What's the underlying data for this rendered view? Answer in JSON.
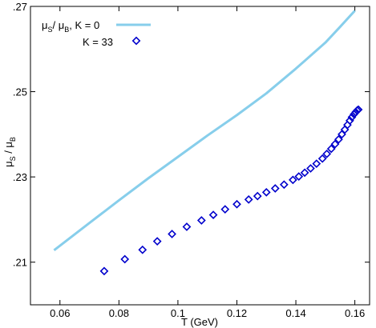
{
  "chart_data": {
    "type": "line",
    "title": "",
    "xlabel": "T (GeV)",
    "ylabel_parts": [
      "μ",
      "S",
      " / μ",
      "B"
    ],
    "xlim": [
      0.05,
      0.165
    ],
    "ylim": [
      0.2,
      0.27
    ],
    "xticks": [
      0.06,
      0.08,
      0.1,
      0.12,
      0.14,
      0.16
    ],
    "xtick_labels": [
      "0.06",
      "0.08",
      "0.1",
      "0.12",
      "0.14",
      "0.16"
    ],
    "yticks": [
      0.21,
      0.23,
      0.25,
      0.27
    ],
    "ytick_labels": [
      ".21",
      ".23",
      ".25",
      ".27"
    ],
    "grid": false,
    "legend_position": "top-left",
    "series": [
      {
        "legend_parts": [
          "μ",
          "S",
          "/ μ",
          "B",
          ", K = 0"
        ],
        "style": "line",
        "color": "#87ceeb",
        "x": [
          0.058,
          0.07,
          0.08,
          0.09,
          0.1,
          0.11,
          0.12,
          0.13,
          0.14,
          0.15,
          0.155,
          0.16
        ],
        "y": [
          0.2128,
          0.2192,
          0.2245,
          0.2297,
          0.2347,
          0.2397,
          0.2445,
          0.2496,
          0.2554,
          0.2615,
          0.2652,
          0.269
        ]
      },
      {
        "legend_parts": [
          "K = 33"
        ],
        "style": "markers",
        "marker": "diamond",
        "color": "#0000cc",
        "x": [
          0.075,
          0.082,
          0.088,
          0.093,
          0.098,
          0.103,
          0.108,
          0.112,
          0.116,
          0.12,
          0.124,
          0.127,
          0.13,
          0.133,
          0.136,
          0.139,
          0.141,
          0.143,
          0.145,
          0.147,
          0.149,
          0.1505,
          0.152,
          0.1533,
          0.1545,
          0.1556,
          0.1566,
          0.1575,
          0.1583,
          0.159,
          0.1597,
          0.1603,
          0.1608,
          0.1612
        ],
        "y": [
          0.2079,
          0.2107,
          0.2129,
          0.2149,
          0.2166,
          0.2183,
          0.2198,
          0.2211,
          0.2224,
          0.2236,
          0.2247,
          0.2255,
          0.2264,
          0.2273,
          0.2282,
          0.2293,
          0.2301,
          0.231,
          0.232,
          0.2331,
          0.2343,
          0.2354,
          0.2366,
          0.2377,
          0.2388,
          0.24,
          0.2411,
          0.2422,
          0.2432,
          0.244,
          0.2447,
          0.2452,
          0.2456,
          0.2458
        ]
      }
    ]
  }
}
